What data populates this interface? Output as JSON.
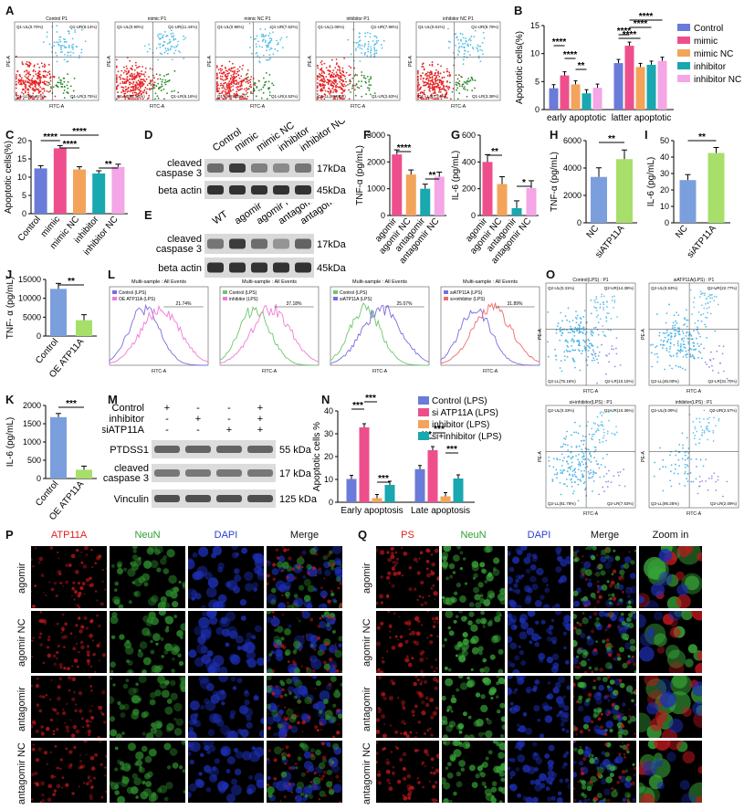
{
  "panels": {
    "A": {
      "label": "A",
      "plots": [
        {
          "title": "Control P1",
          "ul": "Q1-UL(0.70%)",
          "ur": "Q1-UR(9.14%)",
          "ll": "Q1-LL(86.41%)",
          "lr": "Q1-LR(3.75%)"
        },
        {
          "title": "mimic P1",
          "ul": "Q1-UL(0.90%)",
          "ur": "Q1-UR(11.44%)",
          "ll": "Q1-LL(81.51%)",
          "lr": "Q1-LR(6.16%)"
        },
        {
          "title": "mimic NC P1",
          "ul": "Q1-UL(0.96%)",
          "ur": "Q1-UR(7.52%)",
          "ll": "Q1-LL(87.01%)",
          "lr": "Q1-LR(4.52%)"
        },
        {
          "title": "inhibitor P1",
          "ul": "Q1-UL(1.06%)",
          "ur": "Q1-UR(7.96%)",
          "ll": "Q1-LL(88.66%)",
          "lr": "Q1-LR(2.63%)"
        },
        {
          "title": "inhibitor NC P1",
          "ul": "Q1-UL(0.61%)",
          "ur": "Q1-UR(8.79%)",
          "ll": "Q1-LL(87.24%)",
          "lr": "Q1-LR(3.38%)"
        }
      ],
      "xlabel": "FITC-A",
      "ylabel": "PE-A"
    },
    "B": {
      "label": "B"
    },
    "C": {
      "label": "C"
    },
    "D": {
      "label": "D",
      "lanes": [
        "Control",
        "mimic",
        "mimic NC",
        "inhibitor",
        "inhibitor NC"
      ],
      "rows": [
        "cleaved caspase 3",
        "beta actin"
      ],
      "kda": [
        "17kDa",
        "45kDa"
      ]
    },
    "E": {
      "label": "E",
      "lanes": [
        "WT",
        "agomir",
        "agomir NC",
        "antagomir",
        "antagomir NC"
      ],
      "rows": [
        "cleaved caspase 3",
        "beta actin"
      ],
      "kda": [
        "17kDa",
        "45kDa"
      ]
    },
    "F": {
      "label": "F"
    },
    "G": {
      "label": "G"
    },
    "H": {
      "label": "H"
    },
    "I": {
      "label": "I"
    },
    "J": {
      "label": "J"
    },
    "K": {
      "label": "K"
    },
    "L": {
      "label": "L",
      "plots": [
        {
          "title": "Multi-sample : All Events",
          "legend": [
            "Control (LPS)",
            "OE ATP11A (LPS)"
          ],
          "gate": "21.74%"
        },
        {
          "title": "Multi-sample : All Events",
          "legend": [
            "Control (LPS)",
            "inhibitor (LPS)"
          ],
          "gate": "37.18%"
        },
        {
          "title": "Multi-sample : All Events",
          "legend": [
            "Control (LPS)",
            "siATP11A (LPS)"
          ],
          "gate": "25.07%"
        },
        {
          "title": "Multi-sample : All Events",
          "legend": [
            "siATP11A (LPS)",
            "si+inhibitor (LPS)"
          ],
          "gate": "31.89%"
        }
      ],
      "xlabel": "FITC-A"
    },
    "M": {
      "label": "M",
      "conds": [
        {
          "name": "Control",
          "marks": [
            "+",
            "-",
            "-",
            "+"
          ]
        },
        {
          "name": "inhibitor",
          "marks": [
            "-",
            "+",
            "-",
            "+"
          ]
        },
        {
          "name": "siATP11A",
          "marks": [
            "-",
            "-",
            "+",
            "+"
          ]
        }
      ],
      "rows": [
        "PTDSS1",
        "cleaved caspase 3",
        "Vinculin"
      ],
      "kda": [
        "55 kDa",
        "17 kDa",
        "125 kDa"
      ]
    },
    "N": {
      "label": "N"
    },
    "O": {
      "label": "O",
      "plots": [
        {
          "title": "Control(LPS) : P1",
          "ul": "Q2-UL(0.31%)",
          "ur": "Q2-UR(14.38%)",
          "ll": "Q2-LL(75.16%)",
          "lr": "Q2-LR(10.15%)"
        },
        {
          "title": "siATP11A(LPS) : P1",
          "ul": "Q2-UL(0.53%)",
          "ur": "Q2-UR(22.77%)",
          "ll": "Q2-LL(45.00%)",
          "lr": "Q2-LR(31.70%)"
        },
        {
          "title": "si+inhibitor(LPS) : P1",
          "ul": "Q2-UL(0.33%)",
          "ur": "Q2-UR(10.36%)",
          "ll": "Q2-LL(81.78%)",
          "lr": "Q2-LR(7.53%)"
        },
        {
          "title": "inhibitor(LPS) : P1",
          "ul": "Q2-UL(0.09%)",
          "ur": "Q2-UR(2.57%)",
          "ll": "Q2-LL(95.25%)",
          "lr": "Q2-LR(2.09%)"
        }
      ],
      "xlabel": "FITC-A",
      "ylabel": "PE-A"
    },
    "P": {
      "label": "P",
      "channels": [
        "ATP11A",
        "NeuN",
        "DAPI",
        "Merge"
      ],
      "rows": [
        "agomir",
        "agomir NC",
        "antagomir",
        "antagomir NC"
      ]
    },
    "Q": {
      "label": "Q",
      "channels": [
        "PS",
        "NeuN",
        "DAPI",
        "Merge",
        "Zoom in"
      ],
      "rows": [
        "agomir",
        "agomir NC",
        "antagomir",
        "antagomir NC"
      ]
    }
  },
  "colors": {
    "control": "#6a7bd9",
    "mimic": "#ee4f8c",
    "mimicNC": "#f3a45a",
    "inhibitor": "#19a7b0",
    "inhibitorNC": "#f4a6e6",
    "blue": "#7b9fdc",
    "green": "#a7df6a"
  },
  "chart_data": [
    {
      "panel": "B",
      "type": "bar",
      "ylabel": "Apoptotic cells(%)",
      "ylim": [
        0,
        15
      ],
      "yticks": [
        0,
        5,
        10,
        15
      ],
      "categories": [
        "early apoptotic",
        "latter apoptotic"
      ],
      "series": [
        {
          "name": "Control",
          "values": [
            3.8,
            8.3
          ]
        },
        {
          "name": "mimic",
          "values": [
            6.1,
            11.4
          ]
        },
        {
          "name": "mimic NC",
          "values": [
            4.5,
            7.6
          ]
        },
        {
          "name": "inhibitor",
          "values": [
            2.9,
            8.0
          ]
        },
        {
          "name": "inhibitor NC",
          "values": [
            3.9,
            8.7
          ]
        }
      ],
      "sig": [
        "****",
        "****",
        "**",
        "****",
        "****",
        "****",
        "****"
      ]
    },
    {
      "panel": "C",
      "type": "bar",
      "ylabel": "Apoptotic cells(%)",
      "ylim": [
        0,
        20
      ],
      "yticks": [
        0,
        5,
        10,
        15,
        20
      ],
      "categories": [
        "Control",
        "mimic",
        "mimic NC",
        "inhibitor",
        "inhibitor NC"
      ],
      "values": [
        12.4,
        17.9,
        12.1,
        11.0,
        12.8
      ],
      "sig": [
        "****",
        "****",
        "****",
        "**"
      ]
    },
    {
      "panel": "F",
      "type": "bar",
      "ylabel": "TNF-α (pg/mL)",
      "ylim": [
        0,
        3000
      ],
      "yticks": [
        0,
        1000,
        2000,
        3000
      ],
      "categories": [
        "agomir",
        "agomir NC",
        "antagomir",
        "antagomir NC"
      ],
      "values": [
        2280,
        1530,
        1000,
        1450
      ],
      "sig": [
        "****",
        "**"
      ]
    },
    {
      "panel": "G",
      "type": "bar",
      "ylabel": "IL-6 (pg/mL)",
      "ylim": [
        0,
        600
      ],
      "yticks": [
        0,
        200,
        400,
        600
      ],
      "categories": [
        "agomir",
        "agomir NC",
        "antagomir",
        "antagomir NC"
      ],
      "values": [
        400,
        235,
        55,
        205
      ],
      "sig": [
        "**",
        "*"
      ]
    },
    {
      "panel": "H",
      "type": "bar",
      "ylabel": "TNF-α (pg/mL)",
      "ylim": [
        0,
        6000
      ],
      "yticks": [
        0,
        2000,
        4000,
        6000
      ],
      "categories": [
        "NC",
        "siATP11A"
      ],
      "values": [
        3350,
        4650
      ],
      "sig": [
        "**"
      ]
    },
    {
      "panel": "I",
      "type": "bar",
      "ylabel": "IL-6 (pg/mL)",
      "ylim": [
        0,
        50
      ],
      "yticks": [
        0,
        10,
        20,
        30,
        40,
        50
      ],
      "categories": [
        "NC",
        "siATP11A"
      ],
      "values": [
        26,
        42.5
      ],
      "sig": [
        "**"
      ]
    },
    {
      "panel": "J",
      "type": "bar",
      "ylabel": "TNF- α (pg/mL)",
      "ylim": [
        0,
        15000
      ],
      "yticks": [
        0,
        5000,
        10000,
        15000
      ],
      "categories": [
        "Control",
        "OE ATP11A"
      ],
      "values": [
        12500,
        4200
      ],
      "sig": [
        "**"
      ]
    },
    {
      "panel": "K",
      "type": "bar",
      "ylabel": "IL-6 (pg/mL)",
      "ylim": [
        0,
        2000
      ],
      "yticks": [
        0,
        500,
        1000,
        1500,
        2000
      ],
      "categories": [
        "Control",
        "OE ATP11A"
      ],
      "values": [
        1680,
        240
      ],
      "sig": [
        "***"
      ]
    },
    {
      "panel": "N",
      "type": "bar",
      "ylabel": "Apoptotic cells %",
      "ylim": [
        0,
        40
      ],
      "yticks": [
        0,
        10,
        20,
        30,
        40
      ],
      "categories": [
        "Early apoptosis",
        "Late apoptosis"
      ],
      "series": [
        {
          "name": "Control (LPS)",
          "values": [
            10.2,
            14.5
          ]
        },
        {
          "name": "si ATP11A (LPS)",
          "values": [
            32.8,
            22.8
          ]
        },
        {
          "name": "inhibitor (LPS)",
          "values": [
            1.8,
            2.6
          ]
        },
        {
          "name": "si+inhibitor (LPS)",
          "values": [
            7.6,
            10.4
          ]
        }
      ],
      "sig": [
        "***",
        "***",
        "***",
        "***",
        "***",
        "***"
      ]
    }
  ]
}
